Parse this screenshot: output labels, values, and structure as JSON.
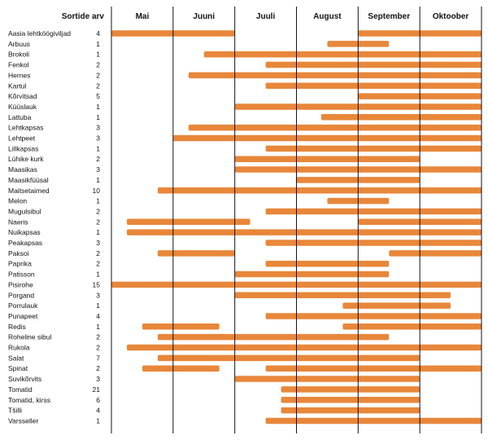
{
  "chart_data": {
    "type": "bar",
    "orientation": "horizontal-range",
    "header_left": "Sortide arv",
    "months": [
      "Mai",
      "Juuni",
      "Juuli",
      "August",
      "September",
      "Oktoober"
    ],
    "x_unit": "month (0 = start of Mai, 6 = end of Oktoober)",
    "xlim": [
      0,
      6
    ],
    "bar_color": "#e8873a",
    "rows": [
      {
        "name": "Aasia lehtköögiviljad",
        "count": "4",
        "ranges": [
          [
            0.0,
            2.0
          ],
          [
            4.0,
            6.0
          ]
        ]
      },
      {
        "name": "Arbuus",
        "count": "1",
        "ranges": [
          [
            3.5,
            4.5
          ]
        ]
      },
      {
        "name": "Brokoli",
        "count": "1",
        "ranges": [
          [
            1.5,
            6.0
          ]
        ]
      },
      {
        "name": "Fenkol",
        "count": "2",
        "ranges": [
          [
            2.5,
            6.0
          ]
        ]
      },
      {
        "name": "Hernes",
        "count": "2",
        "ranges": [
          [
            1.25,
            6.0
          ]
        ]
      },
      {
        "name": "Kartul",
        "count": "2",
        "ranges": [
          [
            2.5,
            6.0
          ]
        ]
      },
      {
        "name": "Kõrvitsad",
        "count": "5",
        "ranges": [
          [
            4.0,
            6.0
          ]
        ]
      },
      {
        "name": "Küüslauk",
        "count": "1",
        "ranges": [
          [
            2.0,
            6.0
          ]
        ]
      },
      {
        "name": "Lattuba",
        "count": "1",
        "ranges": [
          [
            3.4,
            6.0
          ]
        ]
      },
      {
        "name": "Lehtkapsas",
        "count": "3",
        "ranges": [
          [
            1.25,
            6.0
          ]
        ]
      },
      {
        "name": "Lehtpeet",
        "count": "3",
        "ranges": [
          [
            1.0,
            6.0
          ]
        ]
      },
      {
        "name": "Lillkapsas",
        "count": "1",
        "ranges": [
          [
            2.5,
            6.0
          ]
        ]
      },
      {
        "name": "Lühike kurk",
        "count": "2",
        "ranges": [
          [
            2.0,
            5.0
          ]
        ]
      },
      {
        "name": "Maasikas",
        "count": "3",
        "ranges": [
          [
            2.0,
            6.0
          ]
        ]
      },
      {
        "name": "Maasikfüüsal",
        "count": "1",
        "ranges": [
          [
            3.0,
            5.0
          ]
        ]
      },
      {
        "name": "Maitsetaimed",
        "count": "10",
        "ranges": [
          [
            0.75,
            6.0
          ]
        ]
      },
      {
        "name": "Melon",
        "count": "1",
        "ranges": [
          [
            3.5,
            4.5
          ]
        ]
      },
      {
        "name": "Mugulsibul",
        "count": "2",
        "ranges": [
          [
            2.5,
            6.0
          ]
        ]
      },
      {
        "name": "Naeris",
        "count": "2",
        "ranges": [
          [
            0.25,
            2.25
          ],
          [
            4.0,
            6.0
          ]
        ]
      },
      {
        "name": "Nuikapsas",
        "count": "1",
        "ranges": [
          [
            0.25,
            6.0
          ]
        ]
      },
      {
        "name": "Peakapsas",
        "count": "3",
        "ranges": [
          [
            2.5,
            6.0
          ]
        ]
      },
      {
        "name": "Paksoi",
        "count": "2",
        "ranges": [
          [
            0.75,
            2.0
          ],
          [
            4.5,
            6.0
          ]
        ]
      },
      {
        "name": "Paprika",
        "count": "2",
        "ranges": [
          [
            2.5,
            4.5
          ]
        ]
      },
      {
        "name": "Patisson",
        "count": "1",
        "ranges": [
          [
            2.0,
            4.5
          ]
        ]
      },
      {
        "name": "Pisirohe",
        "count": "15",
        "ranges": [
          [
            0.0,
            6.0
          ]
        ]
      },
      {
        "name": "Porgand",
        "count": "3",
        "ranges": [
          [
            2.0,
            5.5
          ]
        ]
      },
      {
        "name": "Porrulauk",
        "count": "1",
        "ranges": [
          [
            3.75,
            5.5
          ]
        ]
      },
      {
        "name": "Punapeet",
        "count": "4",
        "ranges": [
          [
            2.5,
            6.0
          ]
        ]
      },
      {
        "name": "Redis",
        "count": "1",
        "ranges": [
          [
            0.5,
            1.75
          ],
          [
            3.75,
            6.0
          ]
        ]
      },
      {
        "name": "Roheline sibul",
        "count": "2",
        "ranges": [
          [
            0.75,
            4.5
          ]
        ]
      },
      {
        "name": "Rukola",
        "count": "2",
        "ranges": [
          [
            0.25,
            6.0
          ]
        ]
      },
      {
        "name": "Salat",
        "count": "7",
        "ranges": [
          [
            0.75,
            5.0
          ]
        ]
      },
      {
        "name": "Spinat",
        "count": "2",
        "ranges": [
          [
            0.5,
            1.75
          ],
          [
            2.5,
            6.0
          ]
        ]
      },
      {
        "name": "Suvikõrvits",
        "count": "3",
        "ranges": [
          [
            2.0,
            5.0
          ]
        ]
      },
      {
        "name": "Tomatid",
        "count": "21",
        "ranges": [
          [
            2.75,
            5.0
          ]
        ]
      },
      {
        "name": "Tomatid, kirss",
        "count": "6",
        "ranges": [
          [
            2.75,
            5.0
          ]
        ]
      },
      {
        "name": "Tšilli",
        "count": "4",
        "ranges": [
          [
            2.75,
            5.0
          ]
        ]
      },
      {
        "name": "Varsseller",
        "count": "1",
        "ranges": [
          [
            2.5,
            6.0
          ]
        ]
      }
    ]
  }
}
